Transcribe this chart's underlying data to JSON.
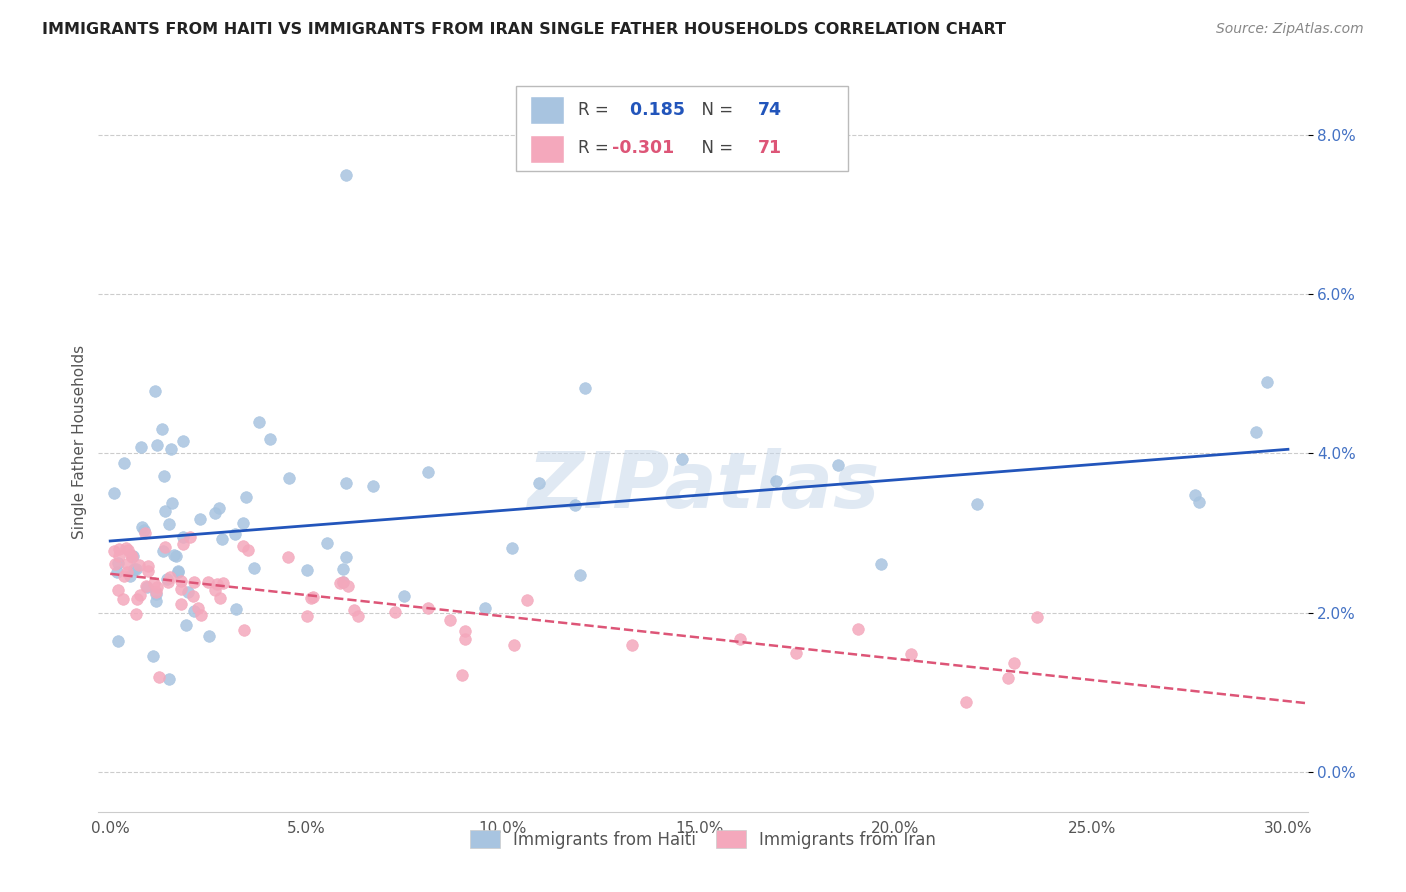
{
  "title": "IMMIGRANTS FROM HAITI VS IMMIGRANTS FROM IRAN SINGLE FATHER HOUSEHOLDS CORRELATION CHART",
  "source": "Source: ZipAtlas.com",
  "ylabel": "Single Father Households",
  "legend_haiti_label": "Immigrants from Haiti",
  "legend_iran_label": "Immigrants from Iran",
  "haiti_color": "#a8c4e0",
  "iran_color": "#f4a8bc",
  "haiti_line_color": "#2255bb",
  "iran_line_color": "#dd5577",
  "haiti_R": 0.185,
  "haiti_N": 74,
  "iran_R": -0.301,
  "iran_N": 71,
  "watermark": "ZIPatlas",
  "ytick_color": "#4472c4",
  "text_color": "#555555",
  "grid_color": "#cccccc",
  "xlim_min": 0,
  "xlim_max": 30,
  "ylim_min": -0.5,
  "ylim_max": 8.8,
  "x_ticks": [
    0,
    5,
    10,
    15,
    20,
    25,
    30
  ],
  "y_ticks": [
    0,
    2,
    4,
    6,
    8
  ]
}
